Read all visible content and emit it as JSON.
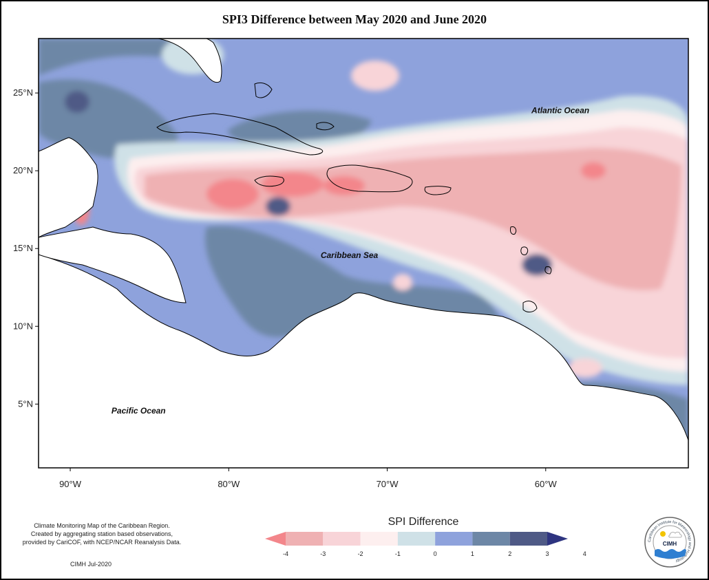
{
  "title": "SPI3 Difference between May 2020 and June 2020",
  "map": {
    "lon_range": [
      -92,
      -51
    ],
    "lat_range": [
      0.9,
      28.5
    ],
    "lat_ticks": [
      {
        "value": 25,
        "label": "25°N"
      },
      {
        "value": 20,
        "label": "20°N"
      },
      {
        "value": 15,
        "label": "15°N"
      },
      {
        "value": 10,
        "label": "10°N"
      },
      {
        "value": 5,
        "label": "5°N"
      }
    ],
    "lon_ticks": [
      {
        "value": -90,
        "label": "90°W"
      },
      {
        "value": -80,
        "label": "80°W"
      },
      {
        "value": -70,
        "label": "70°W"
      },
      {
        "value": -60,
        "label": "60°W"
      }
    ],
    "labels": [
      {
        "text": "Atlantic Ocean",
        "lon": -60.9,
        "lat": 23.7
      },
      {
        "text": "Caribbean Sea",
        "lon": -74.2,
        "lat": 14.4
      },
      {
        "text": "Pacific Ocean",
        "lon": -87.4,
        "lat": 4.4
      }
    ]
  },
  "legend": {
    "title": "SPI Difference",
    "ticks": [
      "-4",
      "-3",
      "-2",
      "-1",
      "0",
      "1",
      "2",
      "3",
      "4"
    ],
    "colors": [
      "#f3868b",
      "#efb1b3",
      "#f8d4d8",
      "#fdefef",
      "#cfe1e7",
      "#8ea2dc",
      "#6d87a6",
      "#4f5a86",
      "#2e3480"
    ]
  },
  "credits": {
    "lines": [
      "Climate Monitoring Map of the Caribbean Region.",
      "Created by aggregating station based observations,",
      "provided by CariCOF, with NCEP/NCAR Reanalysis Data."
    ],
    "date": "CIMH Jul-2020"
  },
  "logo": {
    "text": "CIMH",
    "ring_text": "Caribbean Institute for Meteorology and Hydrology"
  }
}
